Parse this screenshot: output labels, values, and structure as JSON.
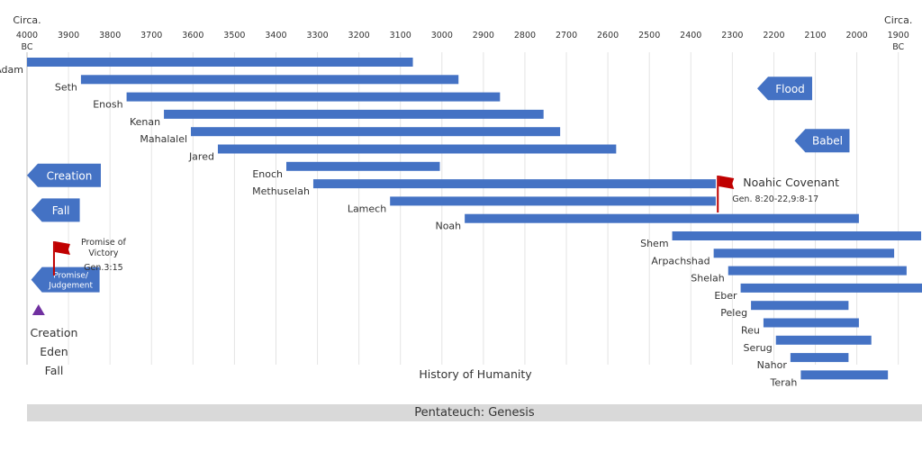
{
  "chart_data": {
    "type": "timeline",
    "x_axis": {
      "range": [
        4000,
        1880
      ],
      "reversed": true,
      "ticks": [
        "4000",
        "3900",
        "3800",
        "3700",
        "3600",
        "3500",
        "3400",
        "3300",
        "3200",
        "3100",
        "3000",
        "2900",
        "2800",
        "2700",
        "2600",
        "2500",
        "2400",
        "2300",
        "2200",
        "2100",
        "2000",
        "1900"
      ],
      "left_caption": "Circa.",
      "left_tick_suffix": "BC",
      "right_caption": "Circa.",
      "right_tick_suffix": "BC"
    },
    "title": "History of Humanity",
    "bar_color": "#4472c4",
    "lifespans": [
      {
        "name": "Adam",
        "start": 4000,
        "end": 3070
      },
      {
        "name": "Seth",
        "start": 3870,
        "end": 2960
      },
      {
        "name": "Enosh",
        "start": 3760,
        "end": 2860
      },
      {
        "name": "Kenan",
        "start": 3670,
        "end": 2755
      },
      {
        "name": "Mahalalel",
        "start": 3605,
        "end": 2715
      },
      {
        "name": "Jared",
        "start": 3540,
        "end": 2580
      },
      {
        "name": "Enoch",
        "start": 3375,
        "end": 3005
      },
      {
        "name": "Methuselah",
        "start": 3310,
        "end": 2340
      },
      {
        "name": "Lamech",
        "start": 3125,
        "end": 2340
      },
      {
        "name": "Noah",
        "start": 2945,
        "end": 1995
      },
      {
        "name": "Shem",
        "start": 2445,
        "end": 1845
      },
      {
        "name": "Arpachshad",
        "start": 2345,
        "end": 1910
      },
      {
        "name": "Shelah",
        "start": 2310,
        "end": 1880
      },
      {
        "name": "Eber",
        "start": 2280,
        "end": 1820
      },
      {
        "name": "Peleg",
        "start": 2255,
        "end": 2020
      },
      {
        "name": "Reu",
        "start": 2225,
        "end": 1995
      },
      {
        "name": "Serug",
        "start": 2195,
        "end": 1965
      },
      {
        "name": "Nahor",
        "start": 2160,
        "end": 2020
      },
      {
        "name": "Terah",
        "start": 2135,
        "end": 1925
      }
    ],
    "event_arrows": [
      {
        "label": "Flood",
        "year": 2240,
        "row": 1
      },
      {
        "label": "Babel",
        "year": 2150,
        "row": 4
      },
      {
        "label": "Creation",
        "year": 4000,
        "row": 6
      },
      {
        "label": "Fall",
        "year": 3990,
        "row": 8
      },
      {
        "label": "Promise/\nJudgement",
        "year": 3990,
        "row": 12
      }
    ],
    "covenants": [
      {
        "title": "Noahic Covenant",
        "reference": "Gen. 8:20-22,9:8-17",
        "year": 2335
      },
      {
        "title": "Promise of\nVictory",
        "reference": "Gen.3:15",
        "year": 3935
      }
    ],
    "marker": {
      "year": 3970,
      "color": "#7030a0"
    },
    "side_notes": [
      "Creation",
      "Eden",
      "Fall"
    ],
    "footer": "Pentateuch: Genesis",
    "arrow_color": "#4472c4",
    "flag_color": "#c00000"
  }
}
